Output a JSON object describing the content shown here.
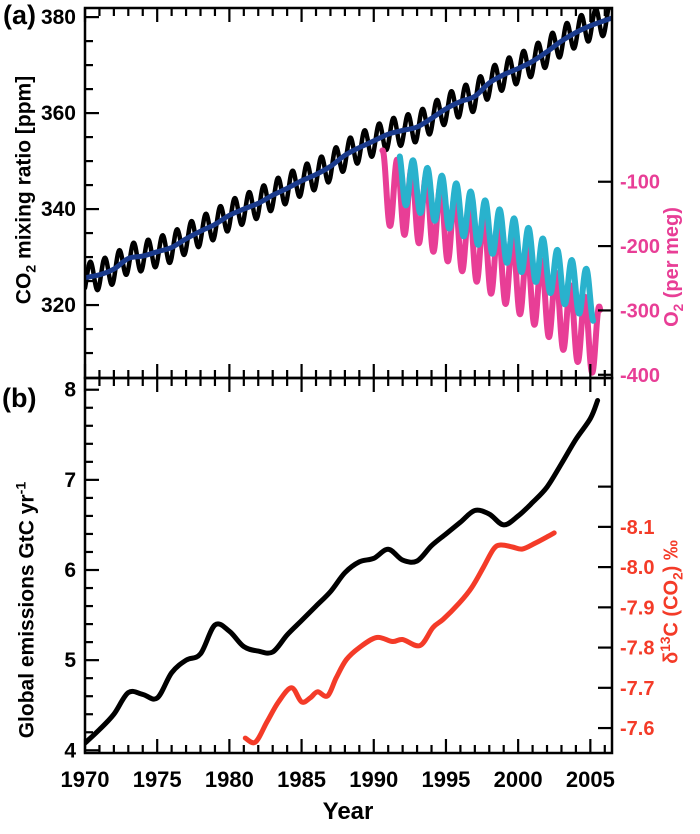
{
  "figure": {
    "panel_a_label": "(a)",
    "panel_b_label": "(b)",
    "x_axis_title": "Year"
  },
  "colors": {
    "frame": "#000000",
    "co2_seasonal": "#000000",
    "co2_trend": "#1a3a8c",
    "o2_series1": "#e83e96",
    "o2_series2": "#29b2cd",
    "emissions": "#000000",
    "d13c": "#f43b28"
  },
  "chart_data": [
    {
      "panel": "a",
      "type": "line",
      "x_range": [
        1970,
        2006.5
      ],
      "x_major_ticks": [
        1970,
        1975,
        1980,
        1985,
        1990,
        1995,
        2000,
        2005
      ],
      "x_tick_labels": [],
      "x_minor_step": 1,
      "left_axis": {
        "title": {
          "pre": "CO",
          "sub": "2",
          "post": " mixing ratio [ppm]"
        },
        "range": [
          304.8,
          381.9
        ],
        "major_ticks": [
          320,
          340,
          360,
          380
        ],
        "tick_labels": [
          "320",
          "340",
          "360",
          "380"
        ],
        "minor_step": 5,
        "color": "#000000"
      },
      "right_axis": {
        "title": {
          "pre": "O",
          "sub": "2",
          "post": " (per meg)"
        },
        "range": [
          -405,
          170
        ],
        "major_ticks": [
          -100,
          -200,
          -300,
          -400
        ],
        "tick_labels": [
          "-100",
          "-200",
          "-300",
          "-400"
        ],
        "minor_step": 0,
        "color": "#e83e96"
      },
      "series": [
        {
          "name": "co2-seasonal",
          "axis": "left",
          "color": "#000000",
          "style": "seasonal",
          "amplitude": 3.1,
          "phase": 0.37,
          "years": [
            1970,
            1971,
            1972,
            1973,
            1974,
            1975,
            1976,
            1977,
            1978,
            1979,
            1980,
            1981,
            1982,
            1983,
            1984,
            1985,
            1986,
            1987,
            1988,
            1989,
            1990,
            1991,
            1992,
            1993,
            1994,
            1995,
            1996,
            1997,
            1998,
            1999,
            2000,
            2001,
            2002,
            2003,
            2004,
            2005,
            2006,
            2006.5
          ],
          "values": [
            325.7,
            326.3,
            327.5,
            329.7,
            330.2,
            331.1,
            332.0,
            333.8,
            335.4,
            336.8,
            338.7,
            340.0,
            341.2,
            342.9,
            344.3,
            345.9,
            347.2,
            348.9,
            351.2,
            352.8,
            354.2,
            355.6,
            356.4,
            357.1,
            358.9,
            360.9,
            362.4,
            363.5,
            366.3,
            368.0,
            369.3,
            370.8,
            372.8,
            375.0,
            376.8,
            378.2,
            379.3,
            379.8
          ]
        },
        {
          "name": "co2-trend",
          "axis": "left",
          "color": "#1a3a8c",
          "style": "smooth",
          "years": [
            1970,
            1971,
            1972,
            1973,
            1974,
            1975,
            1976,
            1977,
            1978,
            1979,
            1980,
            1981,
            1982,
            1983,
            1984,
            1985,
            1986,
            1987,
            1988,
            1989,
            1990,
            1991,
            1992,
            1993,
            1994,
            1995,
            1996,
            1997,
            1998,
            1999,
            2000,
            2001,
            2002,
            2003,
            2004,
            2005,
            2006,
            2006.5
          ],
          "values": [
            325.7,
            326.3,
            327.5,
            329.7,
            330.2,
            331.1,
            332.0,
            333.8,
            335.4,
            336.8,
            338.7,
            340.0,
            341.2,
            342.9,
            344.3,
            345.9,
            347.2,
            348.9,
            351.2,
            352.8,
            354.2,
            355.6,
            356.4,
            357.1,
            358.9,
            360.9,
            362.4,
            363.5,
            366.3,
            368.0,
            369.3,
            370.8,
            372.8,
            375.0,
            376.8,
            378.2,
            379.3,
            379.8
          ]
        },
        {
          "name": "o2-pink",
          "axis": "right",
          "color": "#e83e96",
          "style": "seasonal",
          "amplitude": 55,
          "phase": 0.62,
          "years": [
            1990.6,
            1991,
            1992,
            1993,
            1994,
            1995,
            1996,
            1997,
            1998,
            1999,
            2000,
            2001,
            2002,
            2003,
            2004,
            2005,
            2005.7
          ],
          "values": [
            -106,
            -112,
            -126,
            -139,
            -152,
            -167,
            -182,
            -198,
            -217,
            -233,
            -249,
            -265,
            -284,
            -304,
            -323,
            -340,
            -350
          ]
        },
        {
          "name": "o2-cyan",
          "axis": "right",
          "color": "#29b2cd",
          "style": "seasonal",
          "amplitude": 38,
          "phase": 0.72,
          "years": [
            1991.8,
            1992,
            1993,
            1994,
            1995,
            1996,
            1997,
            1998,
            1999,
            2000,
            2001,
            2002,
            2003,
            2004,
            2005,
            2005.2
          ],
          "values": [
            -94,
            -96,
            -108,
            -120,
            -132,
            -144,
            -157,
            -171,
            -185,
            -199,
            -214,
            -231,
            -249,
            -264,
            -277,
            -279
          ]
        }
      ]
    },
    {
      "panel": "b",
      "type": "line",
      "x_range": [
        1970,
        2006.5
      ],
      "x_major_ticks": [
        1970,
        1975,
        1980,
        1985,
        1990,
        1995,
        2000,
        2005
      ],
      "x_tick_labels": [
        "1970",
        "1975",
        "1980",
        "1985",
        "1990",
        "1995",
        "2000",
        "2005"
      ],
      "x_minor_step": 1,
      "left_axis": {
        "title": {
          "pre": "Global emissions GtC yr",
          "sup": "-1"
        },
        "range": [
          3.97,
          8.13
        ],
        "major_ticks": [
          4,
          5,
          6,
          7,
          8
        ],
        "tick_labels": [
          "4",
          "5",
          "6",
          "7",
          "8"
        ],
        "minor_step": 0.2,
        "color": "#000000"
      },
      "right_axis": {
        "title": {
          "delta": "δ",
          "iso": "13",
          "mid": "C (CO",
          "sub": "2",
          "post": ") ‰"
        },
        "range": [
          -7.538,
          -8.47
        ],
        "major_ticks": [
          -8.2,
          -8.1,
          -8.0,
          -7.9,
          -7.8,
          -7.7,
          -7.6
        ],
        "tick_labels": [
          "",
          "-8.1",
          "-8.0",
          "-7.9",
          "-7.8",
          "-7.7",
          "-7.6"
        ],
        "minor_step": 0,
        "color": "#f43b28"
      },
      "series": [
        {
          "name": "emissions",
          "axis": "left",
          "color": "#000000",
          "style": "smooth",
          "years": [
            1970,
            1971,
            1972,
            1973,
            1974,
            1975,
            1976,
            1977,
            1978,
            1979,
            1980,
            1981,
            1982,
            1983,
            1984,
            1985,
            1986,
            1987,
            1988,
            1989,
            1990,
            1991,
            1992,
            1993,
            1994,
            1995,
            1996,
            1997,
            1998,
            1999,
            2000,
            2001,
            2002,
            2003,
            2004,
            2005,
            2005.5
          ],
          "values": [
            4.08,
            4.23,
            4.4,
            4.64,
            4.62,
            4.58,
            4.86,
            5.0,
            5.07,
            5.39,
            5.32,
            5.15,
            5.1,
            5.09,
            5.28,
            5.44,
            5.6,
            5.76,
            5.97,
            6.09,
            6.13,
            6.23,
            6.11,
            6.1,
            6.27,
            6.4,
            6.53,
            6.66,
            6.62,
            6.5,
            6.6,
            6.75,
            6.92,
            7.18,
            7.45,
            7.68,
            7.88
          ]
        },
        {
          "name": "d13c",
          "axis": "right",
          "color": "#f43b28",
          "style": "smooth",
          "years": [
            1981.1,
            1981.8,
            1982.6,
            1983.4,
            1984.3,
            1985.0,
            1985.6,
            1986.1,
            1986.8,
            1987.4,
            1988.1,
            1989.0,
            1990.2,
            1991.3,
            1992.0,
            1993.2,
            1994.1,
            1994.8,
            1995.9,
            1996.8,
            1997.6,
            1998.3,
            1998.8,
            1999.6,
            2000.3,
            2001.2,
            2002.0,
            2002.5
          ],
          "values": [
            -7.575,
            -7.565,
            -7.615,
            -7.665,
            -7.7,
            -7.665,
            -7.675,
            -7.69,
            -7.68,
            -7.725,
            -7.77,
            -7.8,
            -7.825,
            -7.815,
            -7.82,
            -7.805,
            -7.85,
            -7.87,
            -7.91,
            -7.95,
            -8.0,
            -8.045,
            -8.055,
            -8.05,
            -8.045,
            -8.06,
            -8.075,
            -8.085
          ]
        }
      ]
    }
  ]
}
